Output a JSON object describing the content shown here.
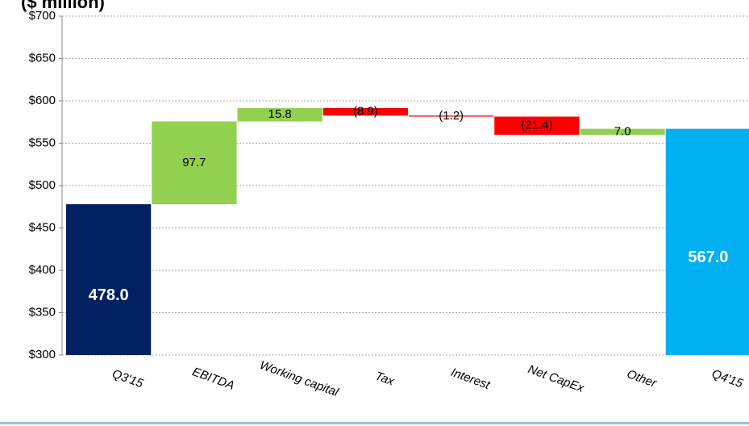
{
  "chart_data": {
    "type": "waterfall",
    "title": "($ million)",
    "categories": [
      "Q3'15",
      "EBITDA",
      "Working capital",
      "Tax",
      "Interest",
      "Net CapEx",
      "Other",
      "Q4'15"
    ],
    "values": [
      478.0,
      97.7,
      15.8,
      -8.9,
      -1.2,
      -21.4,
      7.0,
      567.0
    ],
    "value_labels": [
      "478.0",
      "97.7",
      "15.8",
      "(8.9)",
      "(1.2)",
      "(21.4)",
      "7.0",
      "567.0"
    ],
    "colors": [
      "#002060",
      "#92d050",
      "#92d050",
      "#ff0000",
      "#ff0000",
      "#ff0000",
      "#92d050",
      "#00b0f0"
    ],
    "ylim": [
      300,
      700
    ],
    "yticks": [
      {
        "value": 300,
        "label": "$300"
      },
      {
        "value": 350,
        "label": "$350"
      },
      {
        "value": 400,
        "label": "$400"
      },
      {
        "value": 450,
        "label": "$450"
      },
      {
        "value": 500,
        "label": "$500"
      },
      {
        "value": 550,
        "label": "$550"
      },
      {
        "value": 600,
        "label": "$600"
      },
      {
        "value": 650,
        "label": "$650"
      },
      {
        "value": 700,
        "label": "$700"
      }
    ],
    "grid": true
  }
}
